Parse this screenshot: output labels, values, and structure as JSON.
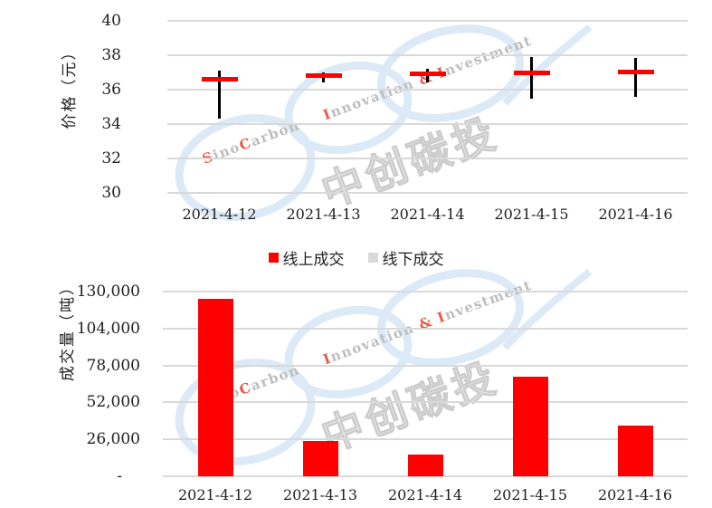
{
  "watermark": {
    "brand_en": "SinoCarbon Innovation & Investment",
    "brand_cn": "中创碳投",
    "ring_color": "#d3e5f5",
    "text_color": "#bdbdbd",
    "accent_color": "#e8563f",
    "cn_fill": "#f0f0f0",
    "cn_stroke": "#cccccc"
  },
  "legend": {
    "items": [
      {
        "label": "线上成交",
        "color": "#ff0000"
      },
      {
        "label": "线下成交",
        "color": "#d9d9d9"
      }
    ]
  },
  "chart_data": [
    {
      "type": "hlc",
      "title": "",
      "ylabel": "价格（元）",
      "x": [
        "2021-4-12",
        "2021-4-13",
        "2021-4-14",
        "2021-4-15",
        "2021-4-16"
      ],
      "series": [
        {
          "name": "线上成交",
          "role": "price-dash",
          "color": "#ff0000",
          "values": [
            36.6,
            36.8,
            36.9,
            37.0,
            37.05
          ]
        }
      ],
      "high": [
        37.1,
        37.0,
        37.2,
        37.9,
        37.85
      ],
      "low": [
        34.3,
        36.4,
        36.4,
        35.45,
        35.6
      ],
      "wick_color": "#000000",
      "ylim": [
        30,
        40
      ],
      "yticks": [
        40,
        38,
        36,
        34,
        32,
        30
      ],
      "grid": true,
      "legend_position": "below"
    },
    {
      "type": "bar",
      "title": "",
      "ylabel": "成交量（吨）",
      "x": [
        "2021-4-12",
        "2021-4-13",
        "2021-4-14",
        "2021-4-15",
        "2021-4-16"
      ],
      "series": [
        {
          "name": "线上成交",
          "color": "#ff0000",
          "values": [
            125000,
            25000,
            15000,
            70000,
            36000
          ]
        }
      ],
      "ylim": [
        0,
        130000
      ],
      "yticks": [
        {
          "value": 130000,
          "label": "130,000"
        },
        {
          "value": 104000,
          "label": "104,000"
        },
        {
          "value": 78000,
          "label": "78,000"
        },
        {
          "value": 52000,
          "label": "52,000"
        },
        {
          "value": 26000,
          "label": "26,000"
        },
        {
          "value": 0,
          "label": "-"
        }
      ],
      "grid": true
    }
  ]
}
